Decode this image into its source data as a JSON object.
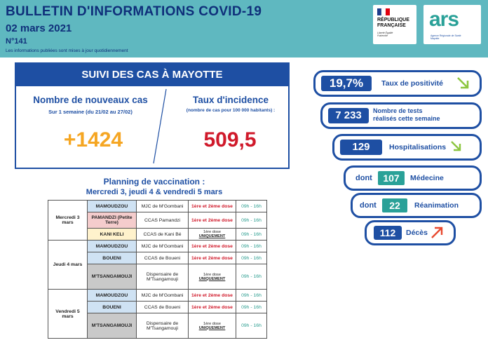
{
  "header": {
    "title": "BULLETIN D'INFORMATIONS COVID-19",
    "date": "02 mars 2021",
    "number": "N°141",
    "note": "Les informations publiées sont mises à jour quotidiennement",
    "logo_rf_lines": [
      "RÉPUBLIQUE",
      "FRANÇAISE"
    ],
    "logo_rf_motto": "Liberté Égalité Fraternité",
    "logo_ars_text": "ars",
    "logo_ars_sub": "Agence Régionale de Santé Mayotte"
  },
  "suivi": {
    "title": "SUIVI DES CAS À MAYOTTE",
    "new_cases_label": "Nombre de nouveaux cas",
    "new_cases_period": "Sur 1 semaine (du 21/02 au 27/02)",
    "new_cases_value": "+1424",
    "incidence_label": "Taux d'incidence",
    "incidence_sub": "(nombre de cas pour 100 000 habitants) :",
    "incidence_value": "509,5"
  },
  "planning": {
    "title": "Planning de vaccination :",
    "subtitle": "Mercredi 3, jeudi 4 & vendredi 5 mars",
    "days": [
      {
        "day": "Mercredi 3 mars",
        "rows": [
          {
            "loc": "MAMOUDZOU",
            "color": "blue",
            "site": "MJC de M'Gombani",
            "dose": "1ère et 2ème dose",
            "dose_type": "red",
            "hours": "09h - 16h"
          },
          {
            "loc": "PAMANDZI (Petite Terre)",
            "color": "pink",
            "site": "CCAS Pamandzi",
            "dose": "1ère et 2ème dose",
            "dose_type": "red",
            "hours": "09h - 16h"
          },
          {
            "loc": "KANI KELI",
            "color": "yellow",
            "site": "CCAS de Kani Bé",
            "dose_prefix": "1ère dose",
            "dose": "UNIQUEMENT",
            "dose_type": "small",
            "hours": "09h - 16h"
          }
        ]
      },
      {
        "day": "Jeudi 4 mars",
        "rows": [
          {
            "loc": "MAMOUDZOU",
            "color": "blue",
            "site": "MJC de M'Gombani",
            "dose": "1ère et 2ème dose",
            "dose_type": "red",
            "hours": "09h - 16h"
          },
          {
            "loc": "BOUENI",
            "color": "blue",
            "site": "CCAS de Boueni",
            "dose": "1ère et 2ème dose",
            "dose_type": "red",
            "hours": "09h - 16h"
          },
          {
            "loc": "M'TSANGAMOUJI",
            "color": "grey",
            "site": "Dispensaire de M'Tsangamouji",
            "dose_prefix": "1ère dose",
            "dose": "UNIQUEMENT",
            "dose_type": "small",
            "hours": "09h - 16h"
          }
        ]
      },
      {
        "day": "Vendredi 5 mars",
        "rows": [
          {
            "loc": "MAMOUDZOU",
            "color": "blue",
            "site": "MJC de M'Gombani",
            "dose": "1ère et 2ème dose",
            "dose_type": "red",
            "hours": "09h - 16h"
          },
          {
            "loc": "BOUENI",
            "color": "blue",
            "site": "CCAS de Boueni",
            "dose": "1ère et 2ème dose",
            "dose_type": "red",
            "hours": "09h - 16h"
          },
          {
            "loc": "M'TSANGAMOUJI",
            "color": "grey",
            "site": "Dispensaire de M'Tsangamouji",
            "dose_prefix": "1ère dose",
            "dose": "UNIQUEMENT",
            "dose_type": "small",
            "hours": "09h - 16h"
          }
        ]
      }
    ]
  },
  "indicators": {
    "positivity": {
      "value": "19,7%",
      "label": "Taux de positivité",
      "trend": "down"
    },
    "tests": {
      "value": "7 233",
      "label_1": "Nombre de tests",
      "label_2": "réalisés cette semaine"
    },
    "hospitalisations": {
      "value": "129",
      "label": "Hospitalisations",
      "trend": "down"
    },
    "medecine": {
      "prefix": "dont",
      "value": "107",
      "label": "Médecine"
    },
    "reanimation": {
      "prefix": "dont",
      "value": "22",
      "label": "Réanimation"
    },
    "deces": {
      "value": "112",
      "label": "Décès",
      "trend": "up"
    }
  },
  "colors": {
    "header_bg": "#5fb8c0",
    "navy": "#1e4fa3",
    "orange": "#f5a623",
    "red": "#d0192a",
    "teal": "#2aa198",
    "arrow_green": "#8cc63f",
    "arrow_red": "#e8492f"
  }
}
